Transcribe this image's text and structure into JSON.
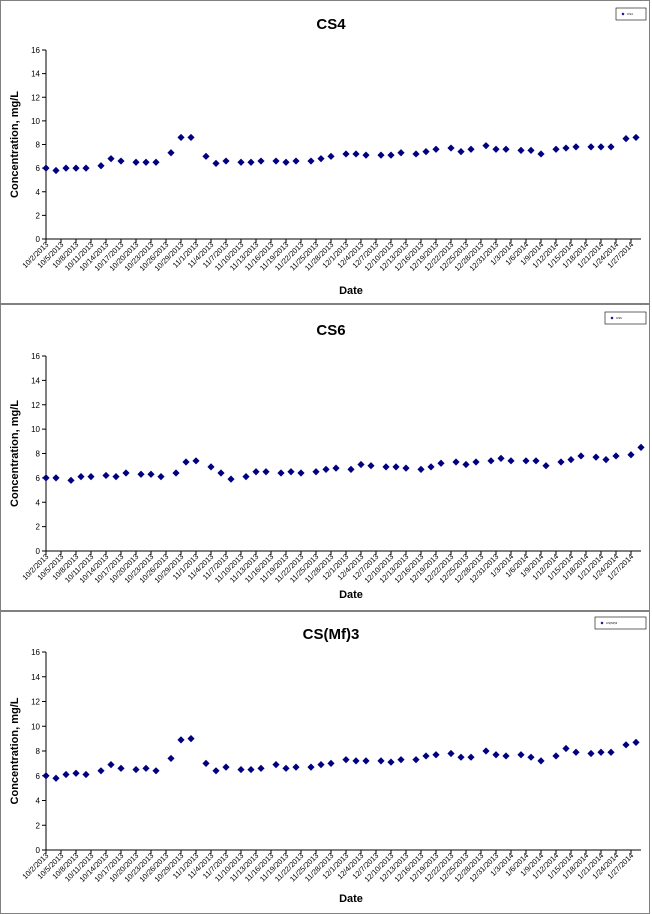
{
  "charts": [
    {
      "title": "CS4",
      "ylabel": "Concentration, mg/L",
      "xlabel": "Date",
      "legend": "CS4"
    },
    {
      "title": "CS6",
      "ylabel": "Concentration, mg/L",
      "xlabel": "Date",
      "legend": "CS6"
    },
    {
      "title": "CS(Mf)3",
      "ylabel": "Concentration, mg/L",
      "xlabel": "Date",
      "legend": "CS(Mf)3"
    }
  ],
  "x_tick_labels": [
    "10/2/2013",
    "10/5/2013",
    "10/8/2013",
    "10/11/2013",
    "10/14/2013",
    "10/17/2013",
    "10/20/2013",
    "10/23/2013",
    "10/26/2013",
    "10/29/2013",
    "11/1/2013",
    "11/4/2013",
    "11/7/2013",
    "11/10/2013",
    "11/13/2013",
    "11/16/2013",
    "11/19/2013",
    "11/22/2013",
    "11/25/2013",
    "11/28/2013",
    "12/1/2013",
    "12/4/2013",
    "12/7/2013",
    "12/10/2013",
    "12/13/2013",
    "12/16/2013",
    "12/19/2013",
    "12/22/2013",
    "12/25/2013",
    "12/28/2013",
    "12/31/2013",
    "1/3/2014",
    "1/6/2014",
    "1/9/2014",
    "1/12/2014",
    "1/15/2014",
    "1/18/2014",
    "1/21/2014",
    "1/24/2014",
    "1/27/2014"
  ],
  "y_ticks": [
    0,
    2,
    4,
    6,
    8,
    10,
    12,
    14,
    16
  ],
  "chart_data": [
    {
      "type": "scatter",
      "title": "CS4",
      "xlabel": "Date",
      "ylabel": "Concentration, mg/L",
      "ylim": [
        0,
        16
      ],
      "xlim": [
        "10/2/2013",
        "1/29/2014"
      ],
      "grid": false,
      "legend_position": "top-right",
      "marker": "diamond",
      "color": "#000080",
      "series": [
        {
          "name": "CS4",
          "points": [
            [
              "10/2/2013",
              6.0
            ],
            [
              "10/4/2013",
              5.8
            ],
            [
              "10/6/2013",
              6.0
            ],
            [
              "10/8/2013",
              6.0
            ],
            [
              "10/10/2013",
              6.0
            ],
            [
              "10/13/2013",
              6.2
            ],
            [
              "10/15/2013",
              6.8
            ],
            [
              "10/17/2013",
              6.6
            ],
            [
              "10/20/2013",
              6.5
            ],
            [
              "10/22/2013",
              6.5
            ],
            [
              "10/24/2013",
              6.5
            ],
            [
              "10/27/2013",
              7.3
            ],
            [
              "10/29/2013",
              8.6
            ],
            [
              "10/31/2013",
              8.6
            ],
            [
              "11/3/2013",
              7.0
            ],
            [
              "11/5/2013",
              6.4
            ],
            [
              "11/7/2013",
              6.6
            ],
            [
              "11/10/2013",
              6.5
            ],
            [
              "11/12/2013",
              6.5
            ],
            [
              "11/14/2013",
              6.6
            ],
            [
              "11/17/2013",
              6.6
            ],
            [
              "11/19/2013",
              6.5
            ],
            [
              "11/21/2013",
              6.6
            ],
            [
              "11/24/2013",
              6.6
            ],
            [
              "11/26/2013",
              6.8
            ],
            [
              "11/28/2013",
              7.0
            ],
            [
              "12/1/2013",
              7.2
            ],
            [
              "12/3/2013",
              7.2
            ],
            [
              "12/5/2013",
              7.1
            ],
            [
              "12/8/2013",
              7.1
            ],
            [
              "12/10/2013",
              7.1
            ],
            [
              "12/12/2013",
              7.3
            ],
            [
              "12/15/2013",
              7.2
            ],
            [
              "12/17/2013",
              7.4
            ],
            [
              "12/19/2013",
              7.6
            ],
            [
              "12/22/2013",
              7.7
            ],
            [
              "12/24/2013",
              7.4
            ],
            [
              "12/26/2013",
              7.6
            ],
            [
              "12/29/2013",
              7.9
            ],
            [
              "12/31/2013",
              7.6
            ],
            [
              "1/2/2014",
              7.6
            ],
            [
              "1/5/2014",
              7.5
            ],
            [
              "1/7/2014",
              7.5
            ],
            [
              "1/9/2014",
              7.2
            ],
            [
              "1/12/2014",
              7.6
            ],
            [
              "1/14/2014",
              7.7
            ],
            [
              "1/16/2014",
              7.8
            ],
            [
              "1/19/2014",
              7.8
            ],
            [
              "1/21/2014",
              7.8
            ],
            [
              "1/23/2014",
              7.8
            ],
            [
              "1/26/2014",
              8.5
            ],
            [
              "1/28/2014",
              8.6
            ]
          ]
        }
      ]
    },
    {
      "type": "scatter",
      "title": "CS6",
      "xlabel": "Date",
      "ylabel": "Concentration, mg/L",
      "ylim": [
        0,
        16
      ],
      "xlim": [
        "10/2/2013",
        "1/29/2014"
      ],
      "grid": false,
      "legend_position": "top-right",
      "marker": "diamond",
      "color": "#000080",
      "series": [
        {
          "name": "CS6",
          "points": [
            [
              "10/2/2013",
              6.0
            ],
            [
              "10/4/2013",
              6.0
            ],
            [
              "10/7/2013",
              5.8
            ],
            [
              "10/9/2013",
              6.1
            ],
            [
              "10/11/2013",
              6.1
            ],
            [
              "10/14/2013",
              6.2
            ],
            [
              "10/16/2013",
              6.1
            ],
            [
              "10/18/2013",
              6.4
            ],
            [
              "10/21/2013",
              6.3
            ],
            [
              "10/23/2013",
              6.3
            ],
            [
              "10/25/2013",
              6.1
            ],
            [
              "10/28/2013",
              6.4
            ],
            [
              "10/30/2013",
              7.3
            ],
            [
              "11/1/2013",
              7.4
            ],
            [
              "11/4/2013",
              6.9
            ],
            [
              "11/6/2013",
              6.4
            ],
            [
              "11/8/2013",
              5.9
            ],
            [
              "11/11/2013",
              6.1
            ],
            [
              "11/13/2013",
              6.5
            ],
            [
              "11/15/2013",
              6.5
            ],
            [
              "11/18/2013",
              6.4
            ],
            [
              "11/20/2013",
              6.5
            ],
            [
              "11/22/2013",
              6.4
            ],
            [
              "11/25/2013",
              6.5
            ],
            [
              "11/27/2013",
              6.7
            ],
            [
              "11/29/2013",
              6.8
            ],
            [
              "12/2/2013",
              6.7
            ],
            [
              "12/4/2013",
              7.1
            ],
            [
              "12/6/2013",
              7.0
            ],
            [
              "12/9/2013",
              6.9
            ],
            [
              "12/11/2013",
              6.9
            ],
            [
              "12/13/2013",
              6.8
            ],
            [
              "12/16/2013",
              6.7
            ],
            [
              "12/18/2013",
              6.9
            ],
            [
              "12/20/2013",
              7.2
            ],
            [
              "12/23/2013",
              7.3
            ],
            [
              "12/25/2013",
              7.1
            ],
            [
              "12/27/2013",
              7.3
            ],
            [
              "12/30/2013",
              7.4
            ],
            [
              "1/1/2014",
              7.6
            ],
            [
              "1/3/2014",
              7.4
            ],
            [
              "1/6/2014",
              7.4
            ],
            [
              "1/8/2014",
              7.4
            ],
            [
              "1/10/2014",
              7.0
            ],
            [
              "1/13/2014",
              7.3
            ],
            [
              "1/15/2014",
              7.5
            ],
            [
              "1/17/2014",
              7.8
            ],
            [
              "1/20/2014",
              7.7
            ],
            [
              "1/22/2014",
              7.5
            ],
            [
              "1/24/2014",
              7.8
            ],
            [
              "1/27/2014",
              7.9
            ],
            [
              "1/29/2014",
              8.5
            ]
          ]
        }
      ]
    },
    {
      "type": "scatter",
      "title": "CS(Mf)3",
      "xlabel": "Date",
      "ylabel": "Concentration, mg/L",
      "ylim": [
        0,
        16
      ],
      "xlim": [
        "10/2/2013",
        "1/29/2014"
      ],
      "grid": false,
      "legend_position": "top-right",
      "marker": "diamond",
      "color": "#000080",
      "series": [
        {
          "name": "CS(Mf)3",
          "points": [
            [
              "10/2/2013",
              6.0
            ],
            [
              "10/4/2013",
              5.8
            ],
            [
              "10/6/2013",
              6.1
            ],
            [
              "10/8/2013",
              6.2
            ],
            [
              "10/10/2013",
              6.1
            ],
            [
              "10/13/2013",
              6.4
            ],
            [
              "10/15/2013",
              6.9
            ],
            [
              "10/17/2013",
              6.6
            ],
            [
              "10/20/2013",
              6.5
            ],
            [
              "10/22/2013",
              6.6
            ],
            [
              "10/24/2013",
              6.4
            ],
            [
              "10/27/2013",
              7.4
            ],
            [
              "10/29/2013",
              8.9
            ],
            [
              "10/31/2013",
              9.0
            ],
            [
              "11/3/2013",
              7.0
            ],
            [
              "11/5/2013",
              6.4
            ],
            [
              "11/7/2013",
              6.7
            ],
            [
              "11/10/2013",
              6.5
            ],
            [
              "11/12/2013",
              6.5
            ],
            [
              "11/14/2013",
              6.6
            ],
            [
              "11/17/2013",
              6.9
            ],
            [
              "11/19/2013",
              6.6
            ],
            [
              "11/21/2013",
              6.7
            ],
            [
              "11/24/2013",
              6.7
            ],
            [
              "11/26/2013",
              6.9
            ],
            [
              "11/28/2013",
              7.0
            ],
            [
              "12/1/2013",
              7.3
            ],
            [
              "12/3/2013",
              7.2
            ],
            [
              "12/5/2013",
              7.2
            ],
            [
              "12/8/2013",
              7.2
            ],
            [
              "12/10/2013",
              7.1
            ],
            [
              "12/12/2013",
              7.3
            ],
            [
              "12/15/2013",
              7.3
            ],
            [
              "12/17/2013",
              7.6
            ],
            [
              "12/19/2013",
              7.7
            ],
            [
              "12/22/2013",
              7.8
            ],
            [
              "12/24/2013",
              7.5
            ],
            [
              "12/26/2013",
              7.5
            ],
            [
              "12/29/2013",
              8.0
            ],
            [
              "12/31/2013",
              7.7
            ],
            [
              "1/2/2014",
              7.6
            ],
            [
              "1/5/2014",
              7.7
            ],
            [
              "1/7/2014",
              7.5
            ],
            [
              "1/9/2014",
              7.2
            ],
            [
              "1/12/2014",
              7.6
            ],
            [
              "1/14/2014",
              8.2
            ],
            [
              "1/16/2014",
              7.9
            ],
            [
              "1/19/2014",
              7.8
            ],
            [
              "1/21/2014",
              7.9
            ],
            [
              "1/23/2014",
              7.9
            ],
            [
              "1/26/2014",
              8.5
            ],
            [
              "1/28/2014",
              8.7
            ]
          ]
        }
      ]
    }
  ]
}
